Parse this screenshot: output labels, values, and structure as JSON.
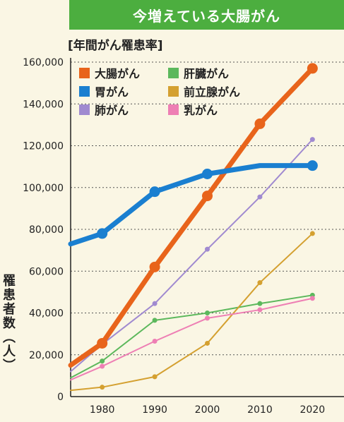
{
  "banner": "今増えている大腸がん",
  "chart_data": {
    "type": "line",
    "title": "今増えている大腸がん",
    "subtitle": "[年間がん罹患率]",
    "ylabel": "罹患者数（人）",
    "xlabel": "",
    "xlim": [
      1974,
      2026
    ],
    "ylim": [
      0,
      160000
    ],
    "x_ticks": [
      1980,
      1990,
      2000,
      2010,
      2020
    ],
    "x_tick_labels": [
      "1980",
      "1990",
      "2000",
      "2010",
      "2020"
    ],
    "y_ticks": [
      0,
      20000,
      40000,
      60000,
      80000,
      100000,
      120000,
      140000,
      160000
    ],
    "y_tick_labels": [
      "0",
      "20,000",
      "40,000",
      "60,000",
      "80,000",
      "100,000",
      "120,000",
      "140,000",
      "160,000"
    ],
    "grid": "horizontal dashed",
    "legend_position": "top-left",
    "series": [
      {
        "name": "大腸がん",
        "color": "#e8641b",
        "x": [
          1974,
          1980,
          1990,
          2000,
          2010,
          2020
        ],
        "values": [
          15000,
          25500,
          62000,
          96000,
          130500,
          157000
        ],
        "markers_at": [
          1980,
          1990,
          2000,
          2010,
          2020
        ]
      },
      {
        "name": "胃がん",
        "color": "#1a7fd0",
        "x": [
          1974,
          1980,
          1990,
          2000,
          2010,
          2020
        ],
        "values": [
          73000,
          78000,
          98000,
          106500,
          110500,
          110500
        ],
        "markers_at": [
          1980,
          1990,
          2000,
          2020
        ]
      },
      {
        "name": "肺がん",
        "color": "#a08ad0",
        "x": [
          1974,
          1980,
          1990,
          2000,
          2010,
          2020
        ],
        "values": [
          12000,
          25000,
          44500,
          70500,
          95500,
          123000
        ],
        "markers_at": [
          1990,
          2000,
          2010,
          2020
        ]
      },
      {
        "name": "肝臓がん",
        "color": "#5cb85c",
        "x": [
          1974,
          1980,
          1990,
          2000,
          2010,
          2020
        ],
        "values": [
          9000,
          17000,
          36500,
          40000,
          44500,
          48500
        ],
        "markers_at": [
          1980,
          1990,
          2000,
          2010,
          2020
        ]
      },
      {
        "name": "前立腺がん",
        "color": "#d4a030",
        "x": [
          1974,
          1980,
          1990,
          2000,
          2010,
          2020
        ],
        "values": [
          3000,
          4500,
          9500,
          25500,
          54500,
          78000
        ],
        "markers_at": [
          1980,
          1990,
          2000,
          2010,
          2020
        ]
      },
      {
        "name": "乳がん",
        "color": "#ee7fb4",
        "x": [
          1974,
          1980,
          1990,
          2000,
          2010,
          2020
        ],
        "values": [
          8000,
          14500,
          26500,
          37500,
          41500,
          47000
        ],
        "markers_at": [
          1980,
          1990,
          2000,
          2010,
          2020
        ]
      }
    ]
  }
}
